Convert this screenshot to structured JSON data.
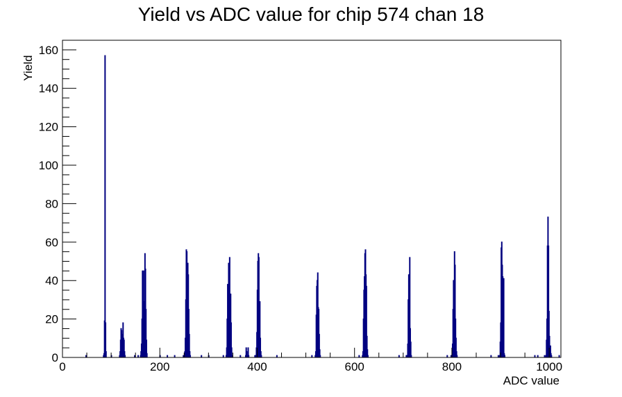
{
  "chart_data": {
    "type": "bar",
    "title": "Yield vs ADC value for chip 574 chan 18",
    "xlabel": "ADC value",
    "ylabel": "Yield",
    "xlim": [
      0,
      1024
    ],
    "ylim": [
      0,
      165
    ],
    "x_ticks": [
      0,
      200,
      400,
      600,
      800,
      1000
    ],
    "y_ticks": [
      0,
      20,
      40,
      60,
      80,
      100,
      120,
      140,
      160
    ],
    "grid": false,
    "legend": "none",
    "bar_color": "#000080",
    "bin_width": 1,
    "bins": [
      [
        48,
        1
      ],
      [
        84,
        1
      ],
      [
        85,
        2
      ],
      [
        86,
        19
      ],
      [
        87,
        157
      ],
      [
        88,
        18
      ],
      [
        89,
        3
      ],
      [
        100,
        1
      ],
      [
        117,
        1
      ],
      [
        118,
        3
      ],
      [
        119,
        9
      ],
      [
        120,
        15
      ],
      [
        121,
        14
      ],
      [
        122,
        9
      ],
      [
        123,
        12
      ],
      [
        124,
        18
      ],
      [
        125,
        10
      ],
      [
        126,
        9
      ],
      [
        127,
        3
      ],
      [
        128,
        1
      ],
      [
        148,
        1
      ],
      [
        155,
        1
      ],
      [
        160,
        1
      ],
      [
        161,
        3
      ],
      [
        162,
        7
      ],
      [
        163,
        20
      ],
      [
        164,
        45
      ],
      [
        165,
        31
      ],
      [
        166,
        45
      ],
      [
        167,
        28
      ],
      [
        168,
        29
      ],
      [
        169,
        54
      ],
      [
        170,
        46
      ],
      [
        171,
        25
      ],
      [
        172,
        9
      ],
      [
        173,
        2
      ],
      [
        200,
        1
      ],
      [
        215,
        1
      ],
      [
        230,
        1
      ],
      [
        248,
        1
      ],
      [
        250,
        1
      ],
      [
        251,
        3
      ],
      [
        252,
        10
      ],
      [
        253,
        30
      ],
      [
        254,
        56
      ],
      [
        255,
        55
      ],
      [
        256,
        28
      ],
      [
        257,
        49
      ],
      [
        258,
        43
      ],
      [
        259,
        25
      ],
      [
        260,
        12
      ],
      [
        261,
        3
      ],
      [
        262,
        1
      ],
      [
        285,
        1
      ],
      [
        300,
        1
      ],
      [
        330,
        1
      ],
      [
        336,
        1
      ],
      [
        337,
        5
      ],
      [
        338,
        20
      ],
      [
        339,
        38
      ],
      [
        340,
        30
      ],
      [
        341,
        49
      ],
      [
        342,
        35
      ],
      [
        343,
        52
      ],
      [
        344,
        30
      ],
      [
        345,
        33
      ],
      [
        346,
        18
      ],
      [
        347,
        5
      ],
      [
        348,
        1
      ],
      [
        365,
        1
      ],
      [
        376,
        1
      ],
      [
        377,
        5
      ],
      [
        378,
        3
      ],
      [
        379,
        1
      ],
      [
        381,
        5
      ],
      [
        382,
        1
      ],
      [
        395,
        1
      ],
      [
        397,
        1
      ],
      [
        398,
        5
      ],
      [
        399,
        13
      ],
      [
        400,
        35
      ],
      [
        401,
        50
      ],
      [
        402,
        54
      ],
      [
        403,
        52
      ],
      [
        404,
        28
      ],
      [
        405,
        29
      ],
      [
        406,
        10
      ],
      [
        407,
        3
      ],
      [
        408,
        1
      ],
      [
        440,
        1
      ],
      [
        512,
        1
      ],
      [
        519,
        1
      ],
      [
        520,
        3
      ],
      [
        521,
        22
      ],
      [
        522,
        37
      ],
      [
        523,
        40
      ],
      [
        524,
        44
      ],
      [
        525,
        26
      ],
      [
        526,
        25
      ],
      [
        527,
        12
      ],
      [
        528,
        4
      ],
      [
        529,
        1
      ],
      [
        609,
        1
      ],
      [
        616,
        1
      ],
      [
        617,
        3
      ],
      [
        618,
        20
      ],
      [
        619,
        35
      ],
      [
        620,
        42
      ],
      [
        621,
        54
      ],
      [
        622,
        56
      ],
      [
        623,
        43
      ],
      [
        624,
        37
      ],
      [
        625,
        11
      ],
      [
        626,
        4
      ],
      [
        627,
        1
      ],
      [
        691,
        1
      ],
      [
        706,
        1
      ],
      [
        708,
        1
      ],
      [
        709,
        7
      ],
      [
        710,
        30
      ],
      [
        711,
        43
      ],
      [
        712,
        37
      ],
      [
        713,
        52
      ],
      [
        714,
        15
      ],
      [
        715,
        8
      ],
      [
        716,
        1
      ],
      [
        790,
        1
      ],
      [
        798,
        1
      ],
      [
        800,
        1
      ],
      [
        801,
        7
      ],
      [
        802,
        25
      ],
      [
        803,
        40
      ],
      [
        804,
        36
      ],
      [
        805,
        55
      ],
      [
        806,
        48
      ],
      [
        807,
        20
      ],
      [
        808,
        10
      ],
      [
        809,
        3
      ],
      [
        810,
        1
      ],
      [
        880,
        1
      ],
      [
        895,
        1
      ],
      [
        898,
        1
      ],
      [
        899,
        8
      ],
      [
        900,
        18
      ],
      [
        901,
        57
      ],
      [
        902,
        60
      ],
      [
        903,
        48
      ],
      [
        904,
        42
      ],
      [
        905,
        40
      ],
      [
        906,
        41
      ],
      [
        907,
        2
      ],
      [
        908,
        1
      ],
      [
        970,
        1
      ],
      [
        976,
        1
      ],
      [
        990,
        1
      ],
      [
        993,
        1
      ],
      [
        994,
        9
      ],
      [
        995,
        20
      ],
      [
        996,
        58
      ],
      [
        997,
        73
      ],
      [
        998,
        58
      ],
      [
        999,
        24
      ],
      [
        1000,
        11
      ],
      [
        1001,
        5
      ],
      [
        1002,
        6
      ],
      [
        1003,
        2
      ],
      [
        1004,
        1
      ],
      [
        1020,
        1
      ]
    ]
  }
}
